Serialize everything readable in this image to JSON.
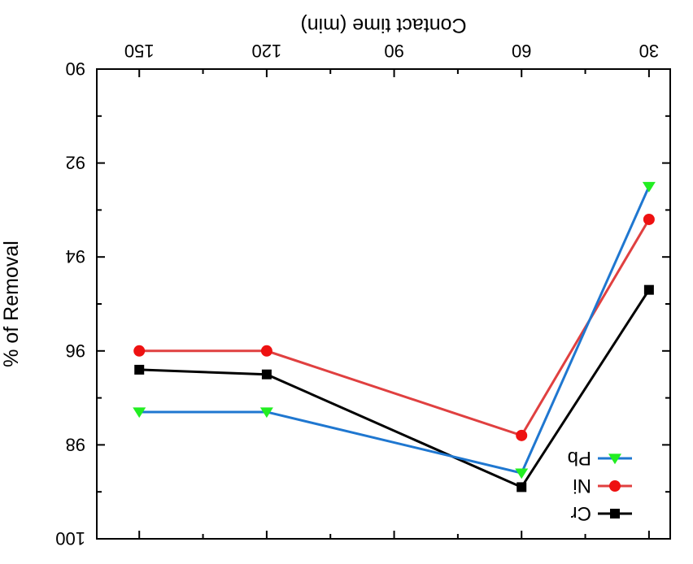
{
  "chart_data": {
    "type": "line",
    "orientation": "rotated 180 degrees (image shown upside-down)",
    "xlabel": "Contact time (min)",
    "ylabel": "% of Removal",
    "x_tick_labels": [
      "30",
      "60",
      "90",
      "120",
      "150"
    ],
    "x_ticks": [
      30,
      60,
      90,
      120,
      150
    ],
    "xlim": [
      25,
      160
    ],
    "y_tick_labels": [
      "90",
      "92",
      "94",
      "96",
      "98",
      "100"
    ],
    "y_ticks": [
      90,
      92,
      94,
      96,
      98,
      100
    ],
    "ylim": [
      90,
      100
    ],
    "grid": false,
    "legend_position": "top-left",
    "series": [
      {
        "name": "Pb",
        "color": "#1f77d0",
        "marker_color": "#22ee22",
        "marker": "triangle",
        "x": [
          30,
          60,
          120,
          150
        ],
        "y": [
          92.5,
          98.6,
          97.3,
          97.3
        ]
      },
      {
        "name": "Ni",
        "color": "#e04040",
        "marker_color": "#ee1111",
        "marker": "circle",
        "x": [
          30,
          60,
          120,
          150
        ],
        "y": [
          93.2,
          97.8,
          96.0,
          96.0
        ]
      },
      {
        "name": "Cr",
        "color": "#000000",
        "marker_color": "#000000",
        "marker": "square",
        "x": [
          30,
          60,
          120,
          150
        ],
        "y": [
          94.7,
          98.9,
          96.5,
          96.4
        ]
      }
    ]
  }
}
